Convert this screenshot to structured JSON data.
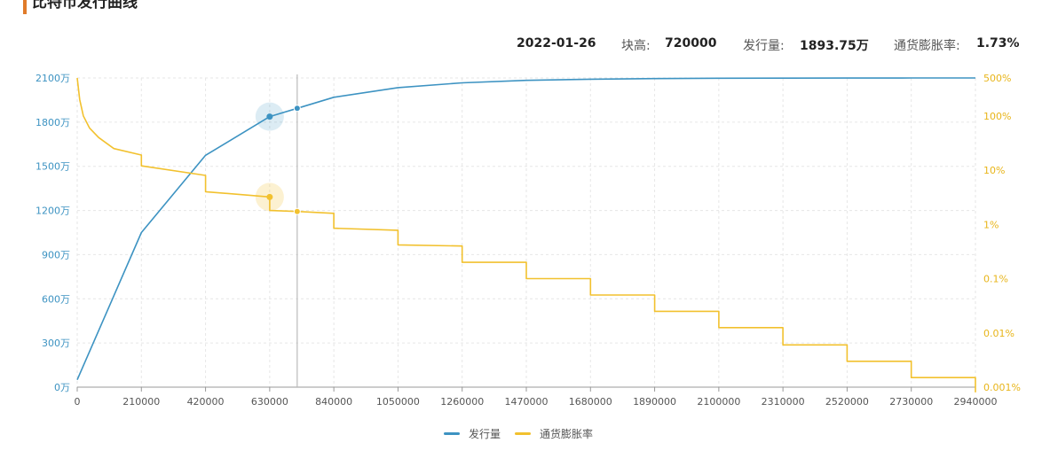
{
  "page": {
    "title": "比特币发行曲线"
  },
  "tooltip": {
    "date": "2022-01-26",
    "block_label": "块高:",
    "block_value": "720000",
    "supply_label": "发行量:",
    "supply_value": "1893.75万",
    "inflation_label": "通货膨胀率:",
    "inflation_value": "1.73%"
  },
  "colors": {
    "supply": "#3d93c2",
    "inflation": "#f2c12e",
    "axis_left": "#3d93c2",
    "axis_right": "#e8b51a",
    "crosshair": "#bbbbbb"
  },
  "chart_data": {
    "type": "line",
    "title": "比特币发行曲线",
    "x_ticks": [
      "0",
      "210000",
      "420000",
      "630000",
      "840000",
      "1050000",
      "1260000",
      "1470000",
      "1680000",
      "1890000",
      "2100000",
      "2310000",
      "2520000",
      "2730000",
      "2940000"
    ],
    "xlim": [
      0,
      2940000
    ],
    "y_left": {
      "ticks": [
        "0万",
        "300万",
        "600万",
        "900万",
        "1200万",
        "1500万",
        "1800万",
        "2100万"
      ],
      "lim": [
        0,
        2100
      ],
      "unit": "万"
    },
    "y_right": {
      "ticks": [
        "0.001%",
        "0.01%",
        "0.1%",
        "1%",
        "10%",
        "100%",
        "500%"
      ],
      "scale": "log",
      "lim": [
        0.001,
        500
      ]
    },
    "highlight_x": 720000,
    "hover_x": 630000,
    "grid": true,
    "legend_position": "bottom",
    "series": [
      {
        "name": "发行量",
        "axis": "left",
        "x": [
          0,
          210000,
          420000,
          630000,
          720000,
          840000,
          1050000,
          1260000,
          1470000,
          1680000,
          1890000,
          2100000,
          2310000,
          2520000,
          2730000,
          2940000
        ],
        "y": [
          50,
          1050,
          1575,
          1837.5,
          1893.75,
          1968.75,
          2034.38,
          2067.19,
          2083.59,
          2091.8,
          2095.9,
          2097.95,
          2098.97,
          2099.49,
          2099.74,
          2099.87
        ]
      },
      {
        "name": "通货膨胀率",
        "axis": "right",
        "x": [
          0,
          8000,
          20000,
          40000,
          70000,
          120000,
          209999,
          210000,
          419999,
          420000,
          629999,
          630000,
          720000,
          839999,
          840000,
          1049999,
          1050000,
          1259999,
          1260000,
          1469999,
          1470000,
          1679999,
          1680000,
          1889999,
          1890000,
          2099999,
          2100000,
          2309999,
          2310000,
          2519999,
          2520000,
          2729999,
          2730000,
          2939999,
          2940000
        ],
        "y": [
          500,
          200,
          100,
          60,
          40,
          25,
          19,
          12,
          8,
          4,
          3.2,
          1.8,
          1.73,
          1.6,
          0.85,
          0.78,
          0.42,
          0.4,
          0.2,
          0.2,
          0.1,
          0.1,
          0.05,
          0.05,
          0.025,
          0.025,
          0.0125,
          0.0125,
          0.006,
          0.006,
          0.003,
          0.003,
          0.0015,
          0.0015,
          0.0008
        ]
      }
    ]
  }
}
